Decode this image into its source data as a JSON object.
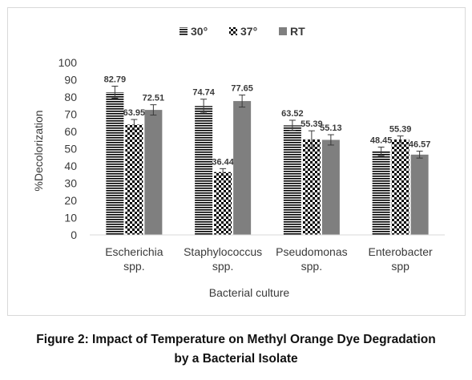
{
  "chart_data": {
    "type": "bar",
    "title": "",
    "xlabel": "Bacterial culture",
    "ylabel": "%Decolorization",
    "ylim": [
      0,
      100
    ],
    "yticks": [
      "0",
      "10",
      "20",
      "30",
      "40",
      "50",
      "60",
      "70",
      "80",
      "90",
      "100"
    ],
    "grid": false,
    "legend_position": "top",
    "categories": [
      [
        "Escherichia",
        "spp."
      ],
      [
        "Staphylococcus",
        "spp."
      ],
      [
        "Pseudomonas",
        "spp."
      ],
      [
        "Enterobacter",
        "spp"
      ]
    ],
    "series": [
      {
        "name": "30°",
        "pattern": "horizontal-stripes",
        "color": "#000000",
        "values": [
          82.79,
          74.74,
          63.52,
          48.45
        ],
        "labels": [
          "82.79",
          "74.74",
          "63.52",
          "48.45"
        ],
        "errors": [
          3.5,
          4.0,
          3.0,
          2.5
        ]
      },
      {
        "name": "37°",
        "pattern": "checkerboard",
        "color": "#000000",
        "values": [
          63.95,
          36.44,
          55.39,
          55.39
        ],
        "labels": [
          "63.95",
          "36.44",
          "55.39",
          "55.39"
        ],
        "errors": [
          3.0,
          2.0,
          5.0,
          2.0
        ]
      },
      {
        "name": "RT",
        "pattern": "solid",
        "color": "#7f7f7f",
        "values": [
          72.51,
          77.65,
          55.13,
          46.57
        ],
        "labels": [
          "72.51",
          "77.65",
          "55.13",
          "46.57"
        ],
        "errors": [
          3.0,
          3.5,
          3.0,
          2.0
        ]
      }
    ]
  },
  "caption": {
    "line1": "Figure 2: Impact of Temperature on Methyl Orange Dye Degradation",
    "line2": "by a Bacterial Isolate"
  }
}
